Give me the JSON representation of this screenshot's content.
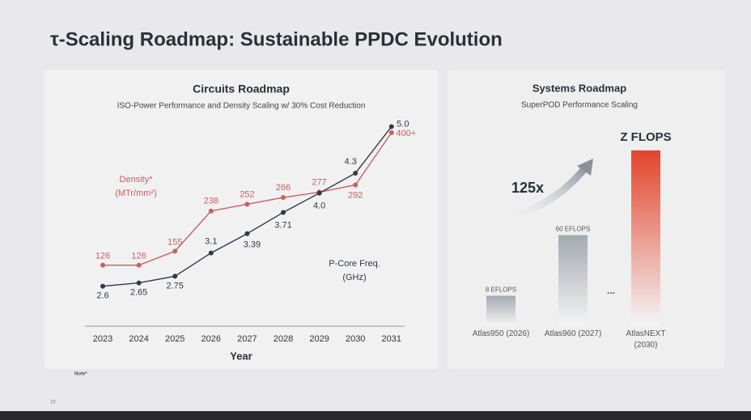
{
  "title": "τ-Scaling Roadmap: Sustainable PPDC Evolution",
  "note": "Note*",
  "page_number": "10",
  "chart_data": [
    {
      "type": "line",
      "title": "Circuits Roadmap",
      "subtitle": "ISO-Power Performance and Density Scaling w/ 30% Cost Reduction",
      "x_label": "Year",
      "categories": [
        "2023",
        "2024",
        "2025",
        "2026",
        "2027",
        "2028",
        "2029",
        "2030",
        "2031"
      ],
      "ylim": [
        0,
        440
      ],
      "y2lim": [
        2,
        5.2
      ],
      "series": [
        {
          "name": "Density* (MTr/mm²)",
          "color": "#c8605f",
          "values": [
            126,
            126,
            155,
            238,
            252,
            266,
            277,
            292,
            400
          ],
          "value_labels": [
            "126",
            "126",
            "155",
            "238",
            "252",
            "266",
            "277",
            "292",
            "400+"
          ]
        },
        {
          "name": "P-Core Freq. (GHz)",
          "color": "#333a46",
          "axis": "y2",
          "values": [
            2.6,
            2.65,
            2.75,
            3.1,
            3.39,
            3.71,
            4.0,
            4.3,
            5.0
          ],
          "value_labels": [
            "2.6",
            "2.65",
            "2.75",
            "3.1",
            "3.39",
            "3.71",
            "4.0",
            "4.3",
            "5.0"
          ]
        }
      ]
    },
    {
      "type": "bar",
      "title": "Systems Roadmap",
      "subtitle": "SuperPOD Performance Scaling",
      "categories": [
        "Atlas950 (2026)",
        "Atlas960 (2027)",
        "AtlasNEXT (2030)"
      ],
      "values": [
        8,
        60,
        1000
      ],
      "value_labels": [
        "8 EFLOPS",
        "60 EFLOPS",
        "Z FLOPS"
      ],
      "colors": [
        "#a4a9b0",
        "#a4a9b0",
        "#e2442c"
      ],
      "log_scale": true,
      "ylim": [
        3,
        1400
      ],
      "annotations": [
        "125x",
        "..."
      ]
    }
  ]
}
